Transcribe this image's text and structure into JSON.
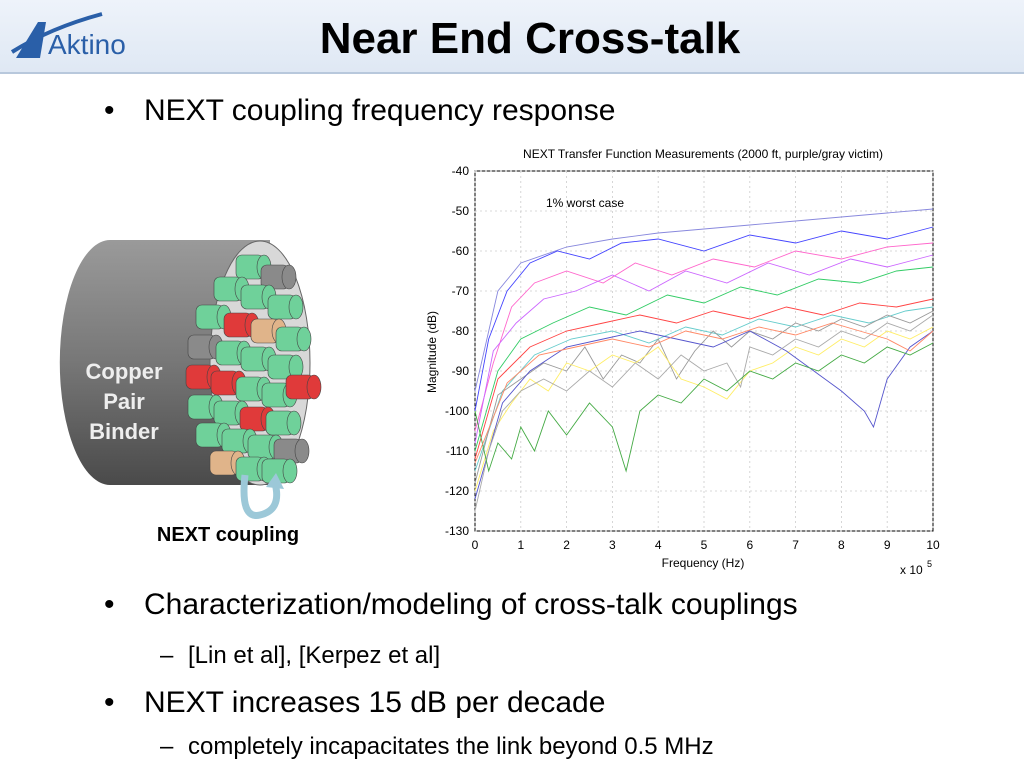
{
  "header": {
    "title": "Near End Cross-talk",
    "logo_text": "Aktino"
  },
  "bullets": {
    "b1": "NEXT coupling frequency response",
    "b2": "Characterization/modeling of cross-talk couplings",
    "b2_sub": "[Lin et al], [Kerpez et al]",
    "b3": "NEXT increases 15 dB per decade",
    "b3_sub": "completely incapacitates the link beyond 0.5 MHz",
    "bullet_glyph": "•",
    "dash_glyph": "–"
  },
  "diagram": {
    "binder_label_lines": [
      "Copper",
      "Pair",
      "Binder"
    ],
    "coupling_label": "NEXT coupling",
    "colors": {
      "pair_green": "#6fd19a",
      "pair_gray": "#8a8a8a",
      "pair_red": "#e03a3a",
      "pair_tan": "#e0b48a",
      "binder": "#777777"
    }
  },
  "chart_data": {
    "type": "line",
    "title": "NEXT Transfer Function Measurements (2000 ft, purple/gray victim)",
    "xlabel": "Frequency (Hz)",
    "ylabel": "Magnitude (dB)",
    "x_multiplier_label": "x 10",
    "x_multiplier_exp": "5",
    "xlim": [
      0,
      10
    ],
    "ylim": [
      -130,
      -40
    ],
    "xticks": [
      0,
      1,
      2,
      3,
      4,
      5,
      6,
      7,
      8,
      9,
      10
    ],
    "yticks": [
      -40,
      -50,
      -60,
      -70,
      -80,
      -90,
      -100,
      -110,
      -120,
      -130
    ],
    "grid": true,
    "annotation": "1% worst case",
    "series": [
      {
        "color": "#8888dd",
        "x": [
          0,
          0.5,
          1,
          2,
          3,
          4,
          5,
          6,
          7,
          8,
          9,
          10
        ],
        "y": [
          -95,
          -70,
          -63,
          -59,
          -57,
          -55.5,
          -54.5,
          -53.5,
          -52.5,
          -51.5,
          -50.5,
          -49.5
        ]
      },
      {
        "color": "#4444ff",
        "x": [
          0,
          0.3,
          0.7,
          1.2,
          1.8,
          2.5,
          3.2,
          4,
          5,
          6,
          7,
          8,
          9,
          10
        ],
        "y": [
          -100,
          -82,
          -70,
          -63,
          -60,
          -62,
          -58,
          -57,
          -60,
          -56,
          -58,
          -55,
          -57,
          -54
        ]
      },
      {
        "color": "#ff66cc",
        "x": [
          0,
          0.4,
          0.8,
          1.3,
          2,
          2.8,
          3.5,
          4.3,
          5.2,
          6.1,
          7,
          8,
          9,
          10
        ],
        "y": [
          -105,
          -88,
          -74,
          -68,
          -65,
          -68,
          -63,
          -66,
          -62,
          -64,
          -60,
          -62,
          -59,
          -58
        ]
      },
      {
        "color": "#cc66ff",
        "x": [
          0,
          0.4,
          0.9,
          1.5,
          2.2,
          3,
          3.8,
          4.6,
          5.5,
          6.4,
          7.3,
          8.2,
          9,
          10
        ],
        "y": [
          -108,
          -85,
          -78,
          -72,
          -70,
          -66,
          -70,
          -65,
          -68,
          -63,
          -66,
          -62,
          -64,
          -61
        ]
      },
      {
        "color": "#33cc66",
        "x": [
          0,
          0.5,
          1,
          1.7,
          2.5,
          3.3,
          4.2,
          5,
          5.8,
          6.6,
          7.5,
          8.4,
          9.2,
          10
        ],
        "y": [
          -110,
          -90,
          -82,
          -78,
          -74,
          -76,
          -71,
          -73,
          -69,
          -71,
          -67,
          -68,
          -65,
          -64
        ]
      },
      {
        "color": "#ff4444",
        "x": [
          0,
          0.5,
          1.2,
          2,
          2.8,
          3.6,
          4.4,
          5.2,
          6,
          6.8,
          7.6,
          8.4,
          9.2,
          10
        ],
        "y": [
          -112,
          -92,
          -84,
          -80,
          -78,
          -76,
          -78,
          -75,
          -77,
          -74,
          -76,
          -73,
          -74,
          -72
        ]
      },
      {
        "color": "#66cccc",
        "x": [
          0,
          0.6,
          1.3,
          2.1,
          3,
          3.8,
          4.6,
          5.4,
          6.2,
          7,
          7.8,
          8.6,
          9.4,
          10
        ],
        "y": [
          -115,
          -95,
          -86,
          -82,
          -80,
          -83,
          -79,
          -81,
          -77,
          -79,
          -76,
          -78,
          -75,
          -74
        ]
      },
      {
        "color": "#999999",
        "x": [
          0,
          0.5,
          1,
          1.5,
          2,
          2.4,
          2.8,
          3.2,
          3.6,
          4,
          4.4,
          4.8,
          5.2,
          5.6,
          6,
          6.5,
          7,
          7.5,
          8,
          8.5,
          9,
          9.5,
          10
        ],
        "y": [
          -118,
          -96,
          -92,
          -88,
          -90,
          -84,
          -92,
          -86,
          -88,
          -82,
          -92,
          -85,
          -80,
          -84,
          -80,
          -82,
          -78,
          -80,
          -77,
          -79,
          -76,
          -78,
          -75
        ]
      },
      {
        "color": "#ffee66",
        "x": [
          0,
          0.4,
          0.8,
          1.2,
          1.6,
          2,
          2.5,
          3,
          3.5,
          4,
          4.5,
          5,
          5.5,
          6,
          6.5,
          7,
          7.5,
          8,
          8.5,
          9,
          9.5,
          10
        ],
        "y": [
          -120,
          -105,
          -98,
          -92,
          -95,
          -88,
          -90,
          -86,
          -88,
          -84,
          -92,
          -94,
          -97,
          -90,
          -88,
          -84,
          -86,
          -82,
          -84,
          -80,
          -82,
          -79
        ]
      },
      {
        "color": "#5555cc",
        "x": [
          0,
          0.6,
          1.2,
          2,
          2.8,
          3.6,
          4.4,
          5.2,
          6,
          6.8,
          7.4,
          8,
          8.5,
          8.7,
          9,
          9.5,
          10
        ],
        "y": [
          -122,
          -98,
          -90,
          -84,
          -82,
          -80,
          -82,
          -84,
          -80,
          -85,
          -90,
          -95,
          -100,
          -104,
          -92,
          -84,
          -80
        ]
      },
      {
        "color": "#aaaaaa",
        "x": [
          0,
          0.3,
          0.6,
          1,
          1.5,
          2,
          2.5,
          3,
          3.5,
          4,
          4.5,
          5,
          5.5,
          5.8,
          6,
          6.5,
          7,
          7.5,
          8,
          8.5,
          9,
          9.5,
          10
        ],
        "y": [
          -125,
          -110,
          -100,
          -95,
          -92,
          -95,
          -90,
          -94,
          -88,
          -92,
          -86,
          -90,
          -88,
          -94,
          -84,
          -86,
          -82,
          -84,
          -80,
          -82,
          -78,
          -80,
          -76
        ]
      },
      {
        "color": "#44aa44",
        "x": [
          0,
          0.3,
          0.5,
          0.8,
          1,
          1.3,
          1.6,
          2,
          2.5,
          3,
          3.3,
          3.6,
          4,
          4.5,
          5,
          5.5,
          6,
          6.5,
          7,
          7.5,
          8,
          8.5,
          9,
          9.5,
          10
        ],
        "y": [
          -100,
          -115,
          -108,
          -112,
          -104,
          -110,
          -100,
          -106,
          -98,
          -104,
          -115,
          -100,
          -96,
          -98,
          -92,
          -95,
          -90,
          -92,
          -88,
          -90,
          -86,
          -88,
          -84,
          -86,
          -83
        ]
      },
      {
        "color": "#ff8866",
        "x": [
          0,
          0.7,
          1.4,
          2.2,
          3,
          3.8,
          4.6,
          5.4,
          6.2,
          7,
          7.8,
          8.4,
          9,
          9.5,
          10
        ],
        "y": [
          -113,
          -93,
          -86,
          -84,
          -82,
          -84,
          -80,
          -82,
          -79,
          -81,
          -78,
          -80,
          -82,
          -85,
          -80
        ]
      }
    ]
  }
}
